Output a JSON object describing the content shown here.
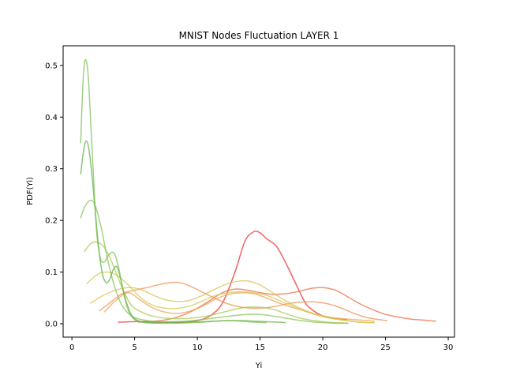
{
  "chart_data": {
    "type": "line",
    "title": "MNIST Nodes Fluctuation LAYER 1",
    "xlabel": "Yi",
    "ylabel": "PDF(Yi)",
    "xlim": [
      -0.7,
      30.5
    ],
    "ylim": [
      -0.026,
      0.538
    ],
    "xticks": [
      0,
      5,
      10,
      15,
      20,
      25,
      30
    ],
    "yticks": [
      0.0,
      0.1,
      0.2,
      0.3,
      0.4,
      0.5
    ],
    "grid": false,
    "legend": "none",
    "series": [
      {
        "color": "#e8292a",
        "x": [
          3.7,
          5,
          6,
          7,
          8,
          9,
          10,
          11,
          12,
          13,
          13.8,
          14.5,
          15,
          15.5,
          16.3,
          17,
          17.7,
          18.5,
          19,
          20,
          21,
          21.9
        ],
        "y": [
          0.003,
          0.004,
          0.004,
          0.003,
          0.003,
          0.003,
          0.006,
          0.015,
          0.04,
          0.1,
          0.16,
          0.178,
          0.176,
          0.165,
          0.15,
          0.12,
          0.085,
          0.045,
          0.03,
          0.015,
          0.01,
          0.008
        ]
      },
      {
        "color": "#ec6a3f",
        "x": [
          5.3,
          6,
          7,
          8,
          9,
          10,
          11,
          12,
          13,
          14,
          15,
          16,
          17,
          18,
          19,
          20,
          21,
          22,
          23,
          24,
          25,
          26,
          27,
          28,
          29
        ],
        "y": [
          0.003,
          0.004,
          0.006,
          0.01,
          0.018,
          0.03,
          0.045,
          0.06,
          0.067,
          0.065,
          0.06,
          0.057,
          0.058,
          0.062,
          0.068,
          0.07,
          0.065,
          0.052,
          0.038,
          0.027,
          0.018,
          0.013,
          0.009,
          0.007,
          0.005
        ]
      },
      {
        "color": "#ee8f4e",
        "x": [
          2.2,
          3,
          4,
          5,
          6,
          7,
          8,
          8.7,
          9.5,
          10.5,
          11.5,
          12.5,
          13.5,
          14.5,
          15.5,
          16.5,
          17.5,
          18.5,
          19.5,
          20.5,
          21.5,
          22.5,
          23.5,
          24.5,
          25.1
        ],
        "y": [
          0.025,
          0.04,
          0.058,
          0.065,
          0.07,
          0.076,
          0.08,
          0.079,
          0.072,
          0.06,
          0.048,
          0.038,
          0.032,
          0.03,
          0.031,
          0.035,
          0.04,
          0.042,
          0.042,
          0.038,
          0.03,
          0.02,
          0.012,
          0.008,
          0.006
        ]
      },
      {
        "color": "#ee9f50",
        "x": [
          2.6,
          3.5,
          4.5,
          5.5,
          6.5,
          7.5,
          8.5,
          9.5,
          10.5,
          11.5,
          12.5,
          13.5,
          14.5,
          15.5,
          16.5,
          17.5,
          18.5,
          19.5,
          20.5,
          21.5,
          22.5,
          23.5,
          24.1
        ],
        "y": [
          0.023,
          0.045,
          0.06,
          0.045,
          0.03,
          0.022,
          0.02,
          0.025,
          0.035,
          0.048,
          0.057,
          0.06,
          0.058,
          0.05,
          0.04,
          0.032,
          0.025,
          0.018,
          0.013,
          0.01,
          0.008,
          0.006,
          0.005
        ]
      },
      {
        "color": "#dcc04e",
        "x": [
          1.5,
          2.5,
          3.5,
          4.5,
          5.5,
          6.5,
          7.5,
          8.5,
          9.5,
          10.5,
          11.5,
          12.5,
          13.5,
          14.2,
          15,
          16,
          17,
          18,
          19,
          20,
          21,
          22,
          23,
          24.1
        ],
        "y": [
          0.04,
          0.055,
          0.065,
          0.07,
          0.066,
          0.055,
          0.046,
          0.043,
          0.046,
          0.056,
          0.068,
          0.078,
          0.083,
          0.082,
          0.075,
          0.06,
          0.045,
          0.032,
          0.022,
          0.015,
          0.01,
          0.006,
          0.003,
          0.002
        ]
      },
      {
        "color": "#d2c950",
        "x": [
          1.2,
          2.0,
          2.7,
          3.5,
          4.5,
          5.5,
          6.5,
          7.5,
          8.5,
          9.5,
          10.5,
          11.5,
          12.5,
          13.5,
          14.5,
          15.5,
          16.5,
          17.5,
          18.5,
          19.5,
          20.5,
          21.5,
          22.5,
          23.5,
          24.1
        ],
        "y": [
          0.078,
          0.095,
          0.1,
          0.095,
          0.075,
          0.05,
          0.035,
          0.03,
          0.03,
          0.035,
          0.045,
          0.055,
          0.06,
          0.062,
          0.06,
          0.055,
          0.045,
          0.035,
          0.025,
          0.017,
          0.011,
          0.007,
          0.004,
          0.002,
          0.002
        ]
      },
      {
        "color": "#a6c84e",
        "x": [
          1.0,
          1.5,
          2.0,
          2.5,
          3.0,
          3.5,
          4.0,
          4.5,
          5.0,
          6.0,
          7.0,
          8.0,
          9.0,
          10.0,
          11.0,
          12.0,
          13.0,
          14.0,
          15.0,
          16.0,
          17.0,
          18.0,
          19.0,
          20.0,
          21.0,
          22.0
        ],
        "y": [
          0.14,
          0.155,
          0.158,
          0.15,
          0.13,
          0.1,
          0.07,
          0.045,
          0.03,
          0.018,
          0.012,
          0.01,
          0.01,
          0.012,
          0.016,
          0.022,
          0.028,
          0.032,
          0.032,
          0.028,
          0.02,
          0.012,
          0.007,
          0.004,
          0.002,
          0.001
        ]
      },
      {
        "color": "#86c050",
        "x": [
          0.7,
          1.0,
          1.4,
          1.8,
          2.3,
          2.8,
          3.3,
          3.8,
          4.3,
          5.0,
          6.0,
          7.0,
          8.0,
          9.0,
          10.0,
          11.0,
          12.0,
          13.0,
          14.0,
          15.0,
          16.0,
          17.0,
          18.0,
          19.0,
          20.0,
          21.0,
          22.0
        ],
        "y": [
          0.205,
          0.225,
          0.238,
          0.232,
          0.19,
          0.13,
          0.08,
          0.045,
          0.025,
          0.012,
          0.006,
          0.004,
          0.004,
          0.005,
          0.007,
          0.01,
          0.013,
          0.016,
          0.018,
          0.018,
          0.015,
          0.011,
          0.007,
          0.004,
          0.002,
          0.001,
          0.001
        ]
      },
      {
        "color": "#5bb04a",
        "x": [
          0.7,
          0.9,
          1.1,
          1.3,
          1.5,
          1.8,
          2.1,
          2.4,
          2.7,
          3.0,
          3.3,
          3.6,
          3.9,
          4.3,
          4.8,
          5.5,
          6.5,
          7.5,
          8.5,
          9.5,
          10.5,
          11.5,
          12.5,
          13.5,
          14.5,
          15.5,
          16.5,
          17
        ],
        "y": [
          0.29,
          0.33,
          0.353,
          0.345,
          0.31,
          0.235,
          0.155,
          0.1,
          0.08,
          0.085,
          0.105,
          0.11,
          0.085,
          0.045,
          0.015,
          0.004,
          0.002,
          0.002,
          0.002,
          0.003,
          0.004,
          0.005,
          0.006,
          0.006,
          0.005,
          0.004,
          0.003,
          0.002
        ]
      },
      {
        "color": "#7bbe56",
        "x": [
          0.7,
          0.85,
          1.0,
          1.15,
          1.3,
          1.5,
          1.75,
          2.0,
          2.3,
          2.6,
          3.0,
          3.4,
          3.8,
          4.2,
          4.6,
          5.0,
          5.5,
          6.5,
          7.5,
          8.5,
          9.5,
          10.5,
          11.5,
          12.5,
          13.5,
          14.5,
          15.5
        ],
        "y": [
          0.35,
          0.45,
          0.505,
          0.508,
          0.48,
          0.39,
          0.27,
          0.17,
          0.125,
          0.12,
          0.135,
          0.135,
          0.1,
          0.05,
          0.02,
          0.008,
          0.003,
          0.001,
          0.001,
          0.001,
          0.002,
          0.003,
          0.005,
          0.006,
          0.005,
          0.003,
          0.002
        ]
      }
    ]
  }
}
